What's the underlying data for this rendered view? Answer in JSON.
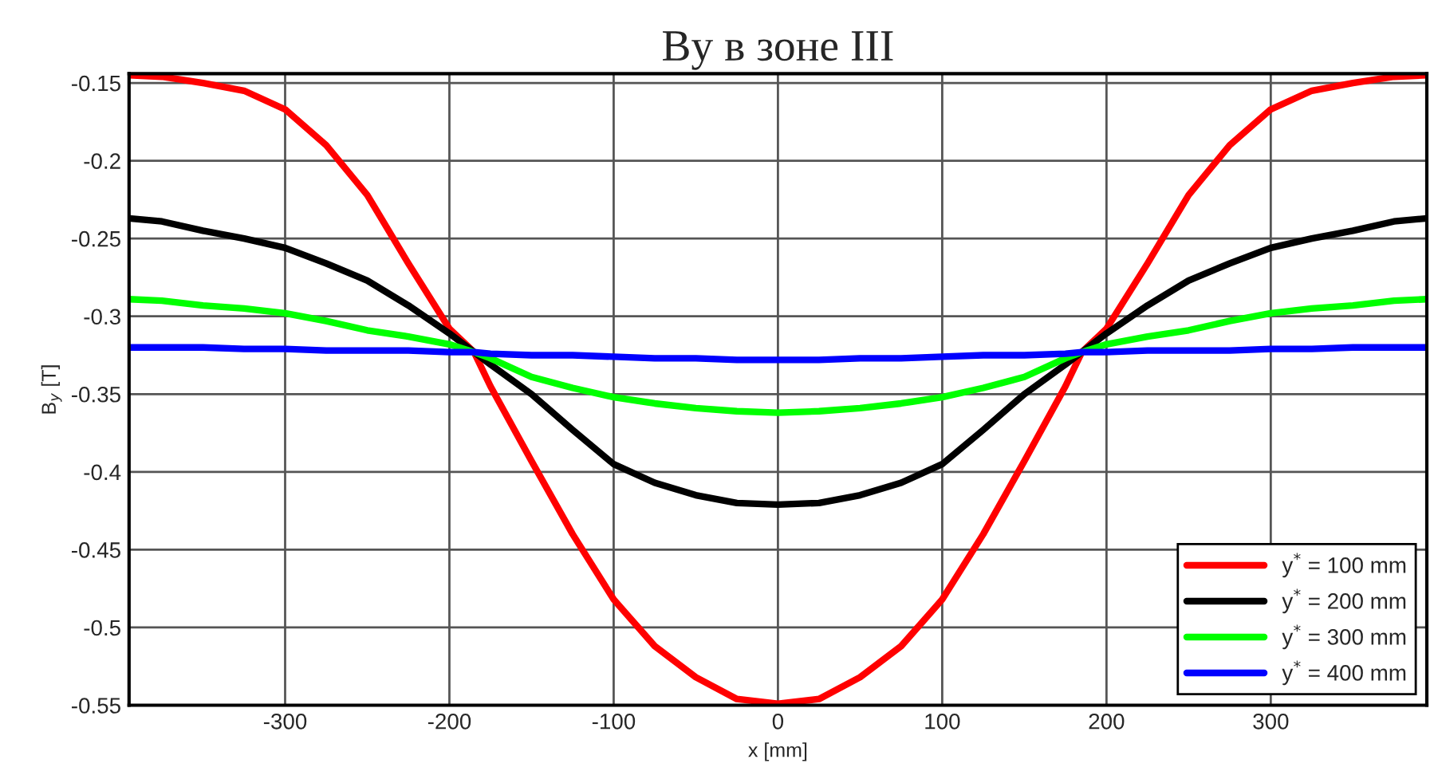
{
  "chart_data": {
    "type": "line",
    "title": "By в зоне III",
    "xlabel": "x [mm]",
    "ylabel": "B$_{y}$ [T]",
    "x": [
      -395,
      -375,
      -350,
      -325,
      -300,
      -275,
      -250,
      -225,
      -200,
      -185,
      -175,
      -150,
      -125,
      -100,
      -75,
      -50,
      -25,
      0,
      25,
      50,
      75,
      100,
      125,
      150,
      175,
      185,
      200,
      225,
      250,
      275,
      300,
      325,
      350,
      375,
      395
    ],
    "series": [
      {
        "name": "y$^{*}$ = 100 mm",
        "color": "#ff0000",
        "values": [
          -0.145,
          -0.146,
          -0.15,
          -0.155,
          -0.167,
          -0.19,
          -0.222,
          -0.266,
          -0.308,
          -0.323,
          -0.345,
          -0.393,
          -0.44,
          -0.482,
          -0.512,
          -0.532,
          -0.546,
          -0.549,
          -0.546,
          -0.532,
          -0.512,
          -0.482,
          -0.44,
          -0.393,
          -0.345,
          -0.323,
          -0.308,
          -0.266,
          -0.222,
          -0.19,
          -0.167,
          -0.155,
          -0.15,
          -0.146,
          -0.145
        ]
      },
      {
        "name": "y$^{*}$ = 200 mm",
        "color": "#000000",
        "values": [
          -0.237,
          -0.239,
          -0.245,
          -0.25,
          -0.256,
          -0.266,
          -0.277,
          -0.293,
          -0.311,
          -0.323,
          -0.331,
          -0.35,
          -0.373,
          -0.395,
          -0.407,
          -0.415,
          -0.42,
          -0.421,
          -0.42,
          -0.415,
          -0.407,
          -0.395,
          -0.373,
          -0.35,
          -0.331,
          -0.323,
          -0.311,
          -0.293,
          -0.277,
          -0.266,
          -0.256,
          -0.25,
          -0.245,
          -0.239,
          -0.237
        ]
      },
      {
        "name": "y$^{*}$ = 300 mm",
        "color": "#00ff00",
        "values": [
          -0.289,
          -0.29,
          -0.293,
          -0.295,
          -0.298,
          -0.303,
          -0.309,
          -0.313,
          -0.318,
          -0.323,
          -0.327,
          -0.339,
          -0.346,
          -0.352,
          -0.356,
          -0.359,
          -0.361,
          -0.362,
          -0.361,
          -0.359,
          -0.356,
          -0.352,
          -0.346,
          -0.339,
          -0.327,
          -0.323,
          -0.318,
          -0.313,
          -0.309,
          -0.303,
          -0.298,
          -0.295,
          -0.293,
          -0.29,
          -0.289
        ]
      },
      {
        "name": "y$^{*}$ = 400 mm",
        "color": "#0000ff",
        "values": [
          -0.32,
          -0.32,
          -0.32,
          -0.321,
          -0.321,
          -0.322,
          -0.322,
          -0.322,
          -0.323,
          -0.323,
          -0.324,
          -0.325,
          -0.325,
          -0.326,
          -0.327,
          -0.327,
          -0.328,
          -0.328,
          -0.328,
          -0.327,
          -0.327,
          -0.326,
          -0.325,
          -0.325,
          -0.324,
          -0.323,
          -0.323,
          -0.322,
          -0.322,
          -0.322,
          -0.321,
          -0.321,
          -0.32,
          -0.32,
          -0.32
        ]
      }
    ],
    "xlim": [
      -395,
      395
    ],
    "ylim": [
      -0.55,
      -0.144
    ],
    "xticks": [
      -300,
      -200,
      -100,
      0,
      100,
      200,
      300
    ],
    "yticks": [
      -0.55,
      -0.5,
      -0.45,
      -0.4,
      -0.35,
      -0.3,
      -0.25,
      -0.2,
      -0.15
    ],
    "grid": true,
    "legend": "lower right",
    "line_style": "solid",
    "marker": "none"
  }
}
